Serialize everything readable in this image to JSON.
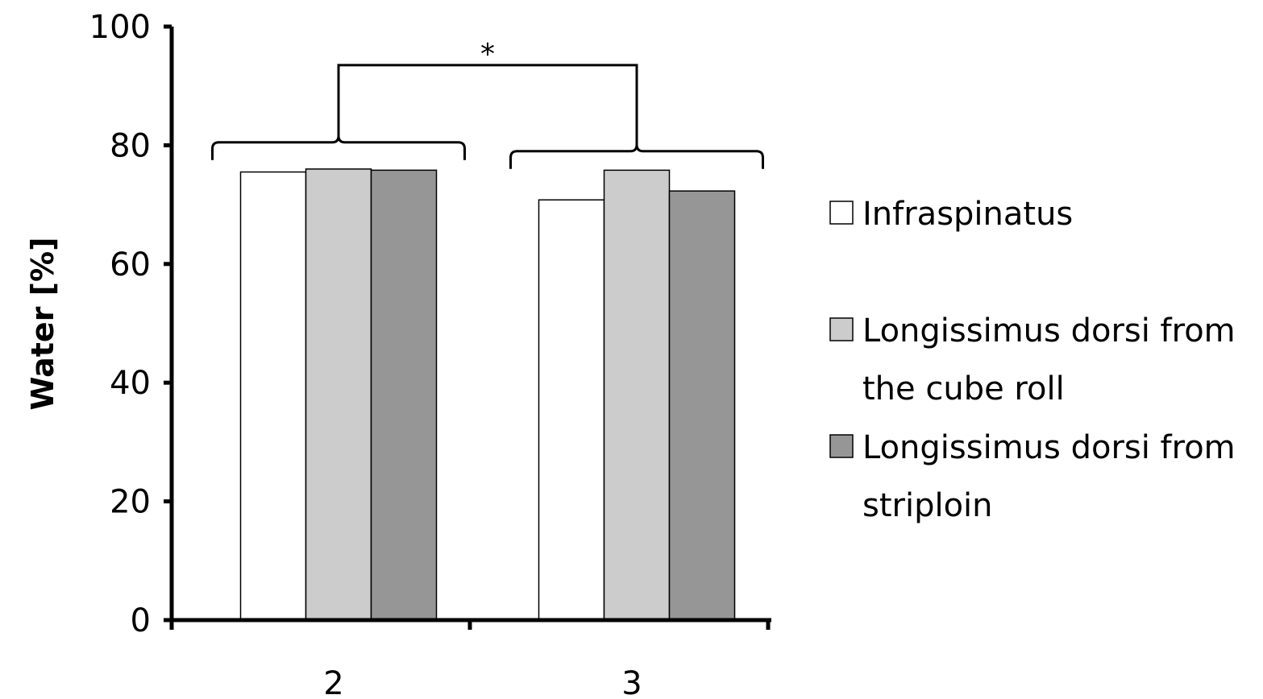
{
  "chart_data": {
    "type": "bar",
    "title": "",
    "xlabel": "",
    "ylabel": "Water [%]",
    "categories": [
      "2",
      "3"
    ],
    "ylim": [
      0,
      100
    ],
    "yticks": [
      0,
      20,
      40,
      60,
      80,
      100
    ],
    "grid": false,
    "legend_position": "right",
    "series": [
      {
        "name": "Infraspinatus",
        "legend_lines": [
          "Infraspinatus"
        ],
        "color": "#ffffff",
        "values": [
          75.5,
          70.8
        ]
      },
      {
        "name": "Longissimus dorsi from the cube roll",
        "legend_lines": [
          "Longissimus dorsi from",
          "the cube roll"
        ],
        "color": "#cccccc",
        "values": [
          76.0,
          75.8
        ]
      },
      {
        "name": "Longissimus dorsi from striploin",
        "legend_lines": [
          "Longissimus dorsi from",
          "striploin"
        ],
        "color": "#969696",
        "values": [
          75.8,
          72.3
        ]
      }
    ],
    "annotations": [
      {
        "type": "group-bracket",
        "category": "2",
        "y": 80.5
      },
      {
        "type": "group-bracket",
        "category": "3",
        "y": 79.0
      },
      {
        "type": "significance",
        "from": "2",
        "to": "3",
        "y": 93.5,
        "label": "*"
      }
    ]
  }
}
